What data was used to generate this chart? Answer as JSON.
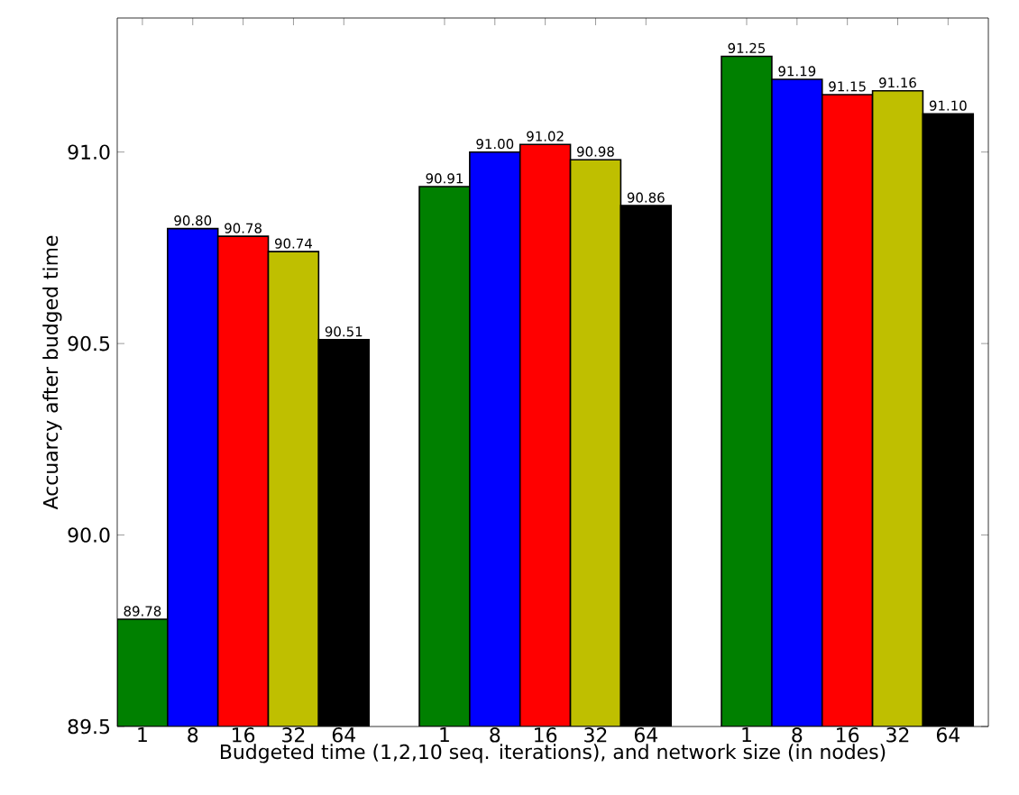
{
  "chart_data": {
    "type": "bar",
    "xlabel": "Budgeted time  (1,2,10 seq. iterations), and network size (in nodes)",
    "ylabel": "Accuarcy after budged time",
    "categories": [
      "1",
      "8",
      "16",
      "32",
      "64",
      "1",
      "8",
      "16",
      "32",
      "64",
      "1",
      "8",
      "16",
      "32",
      "64"
    ],
    "values": [
      89.78,
      90.8,
      90.78,
      90.74,
      90.51,
      90.91,
      91.0,
      91.02,
      90.98,
      90.86,
      91.25,
      91.19,
      91.15,
      91.16,
      91.1
    ],
    "value_labels": [
      "89.78",
      "90.80",
      "90.78",
      "90.74",
      "90.51",
      "90.91",
      "91.00",
      "91.02",
      "90.98",
      "90.86",
      "91.25",
      "91.19",
      "91.15",
      "91.16",
      "91.10"
    ],
    "colors": [
      "#008000",
      "#0000ff",
      "#ff0000",
      "#bfbf00",
      "#000000",
      "#008000",
      "#0000ff",
      "#ff0000",
      "#bfbf00",
      "#000000",
      "#008000",
      "#0000ff",
      "#ff0000",
      "#bfbf00",
      "#000000"
    ],
    "ylim": [
      89.5,
      91.35
    ],
    "yticks": [
      {
        "value": 89.5,
        "label": "89.5"
      },
      {
        "value": 90,
        "label": "90.0"
      },
      {
        "value": 90.5,
        "label": "90.5"
      },
      {
        "value": 91,
        "label": "91.0"
      }
    ],
    "grid": false
  }
}
